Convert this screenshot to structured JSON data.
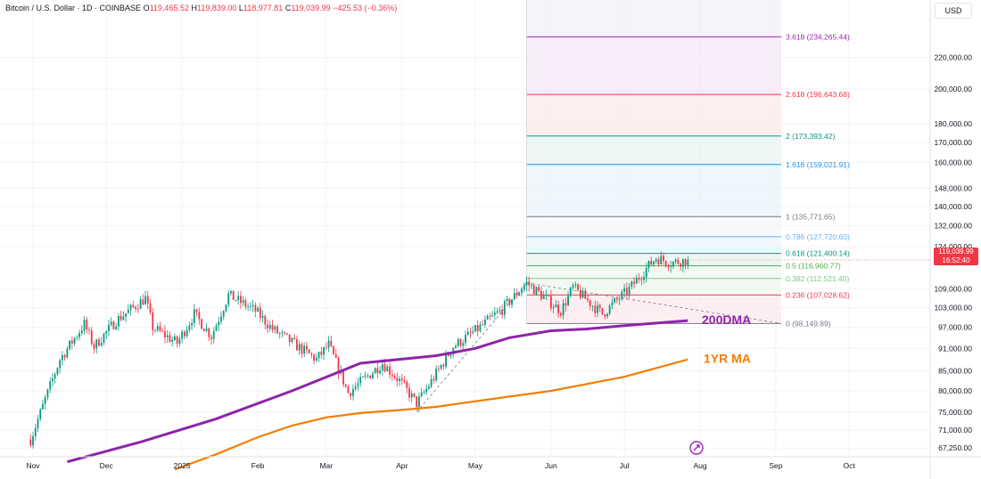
{
  "header": {
    "symbol": "Bitcoin / U.S. Dollar · 1D · COINBASE",
    "open_label": "O",
    "open": "119,465.52",
    "high_label": "H",
    "high": "119,839.00",
    "low_label": "L",
    "low": "118,977.81",
    "close_label": "C",
    "close": "119,039.99",
    "change": "−425.53 (−0.36%)"
  },
  "currency_button": "USD",
  "last_price": {
    "price": "119,039.99",
    "countdown": "16:52:40",
    "color": "#f23645"
  },
  "colors": {
    "up": "#089981",
    "down": "#f23645",
    "dma200": "#8e24aa",
    "ma1yr": "#f57c00",
    "grid": "#f0f3fa"
  },
  "chart_data": {
    "type": "candlestick",
    "y_scale": "log",
    "ylim": [
      65500,
      262000
    ],
    "y_ticks": [
      {
        "value": 220000,
        "label": "220,000.00"
      },
      {
        "value": 200000,
        "label": "200,000.00"
      },
      {
        "value": 180000,
        "label": "180,000.00"
      },
      {
        "value": 170000,
        "label": "170,000.00"
      },
      {
        "value": 160000,
        "label": "160,000.00"
      },
      {
        "value": 148000,
        "label": "148,000.00"
      },
      {
        "value": 140000,
        "label": "140,000.00"
      },
      {
        "value": 132000,
        "label": "132,000.00"
      },
      {
        "value": 124000,
        "label": "124,000.00"
      },
      {
        "value": 109000,
        "label": "109,000.00"
      },
      {
        "value": 103000,
        "label": "103,000.00"
      },
      {
        "value": 97000,
        "label": "97,000.00"
      },
      {
        "value": 91000,
        "label": "91,000.00"
      },
      {
        "value": 85000,
        "label": "85,000.00"
      },
      {
        "value": 80000,
        "label": "80,000.00"
      },
      {
        "value": 75000,
        "label": "75,000.00"
      },
      {
        "value": 71000,
        "label": "71,000.00"
      },
      {
        "value": 67250,
        "label": "67,250.00"
      }
    ],
    "x_ticks": [
      "Nov",
      "Dec",
      "2025",
      "Feb",
      "Mar",
      "Apr",
      "May",
      "Jun",
      "Jul",
      "Aug",
      "Sep",
      "Oct"
    ],
    "fib_levels": [
      {
        "ratio": "0",
        "value": 98149.89,
        "label": "0 (98,149.89)",
        "color": "#787b86"
      },
      {
        "ratio": "0.236",
        "value": 107028.62,
        "label": "0.236 (107,028.62)",
        "color": "#f23645"
      },
      {
        "ratio": "0.382",
        "value": 112521.4,
        "label": "0.382 (112,521.40)",
        "color": "#81c784"
      },
      {
        "ratio": "0.5",
        "value": 116960.77,
        "label": "0.5 (116,960.77)",
        "color": "#4caf50"
      },
      {
        "ratio": "0.618",
        "value": 121400.14,
        "label": "0.618 (121,400.14)",
        "color": "#089981"
      },
      {
        "ratio": "0.786",
        "value": 127720.6,
        "label": "0.786 (127,720.60)",
        "color": "#64b5f6"
      },
      {
        "ratio": "1",
        "value": 135771.65,
        "label": "1 (135,771.65)",
        "color": "#787b86"
      },
      {
        "ratio": "1.618",
        "value": 159021.91,
        "label": "1.618 (159,021.91)",
        "color": "#2196f3"
      },
      {
        "ratio": "2",
        "value": 173393.42,
        "label": "2 (173,393.42)",
        "color": "#089981"
      },
      {
        "ratio": "2.618",
        "value": 196643.68,
        "label": "2.618 (196,643.68)",
        "color": "#f23645"
      },
      {
        "ratio": "3.618",
        "value": 234265.44,
        "label": "3.618 (234,265.44)",
        "color": "#9c27b0"
      }
    ],
    "ma_labels": [
      {
        "text": "200DMA",
        "color": "#8e24aa"
      },
      {
        "text": "1YR MA",
        "color": "#f57c00"
      }
    ],
    "dma200": [
      {
        "date": "2024-11-15",
        "value": 64500
      },
      {
        "date": "2024-12-15",
        "value": 68500
      },
      {
        "date": "2025-01-15",
        "value": 73500
      },
      {
        "date": "2025-02-15",
        "value": 80000
      },
      {
        "date": "2025-03-15",
        "value": 87000
      },
      {
        "date": "2025-04-15",
        "value": 89000
      },
      {
        "date": "2025-05-01",
        "value": 91000
      },
      {
        "date": "2025-05-15",
        "value": 94000
      },
      {
        "date": "2025-06-01",
        "value": 96000
      },
      {
        "date": "2025-06-15",
        "value": 96500
      },
      {
        "date": "2025-07-01",
        "value": 97500
      },
      {
        "date": "2025-07-27",
        "value": 99000
      }
    ],
    "ma1yr": [
      {
        "date": "2024-12-29",
        "value": 63000
      },
      {
        "date": "2025-01-15",
        "value": 66000
      },
      {
        "date": "2025-02-01",
        "value": 69500
      },
      {
        "date": "2025-02-15",
        "value": 72000
      },
      {
        "date": "2025-03-01",
        "value": 73800
      },
      {
        "date": "2025-03-15",
        "value": 74800
      },
      {
        "date": "2025-04-01",
        "value": 75500
      },
      {
        "date": "2025-04-15",
        "value": 76200
      },
      {
        "date": "2025-05-01",
        "value": 77500
      },
      {
        "date": "2025-06-01",
        "value": 80000
      },
      {
        "date": "2025-07-01",
        "value": 83500
      },
      {
        "date": "2025-07-27",
        "value": 88000
      }
    ],
    "candles_anchor": [
      {
        "date": "2024-10-31",
        "close": 69000
      },
      {
        "date": "2024-11-12",
        "close": 88000
      },
      {
        "date": "2024-11-22",
        "close": 98000
      },
      {
        "date": "2024-11-26",
        "close": 91500
      },
      {
        "date": "2024-12-05",
        "close": 99000
      },
      {
        "date": "2024-12-17",
        "close": 106000
      },
      {
        "date": "2024-12-20",
        "close": 97000
      },
      {
        "date": "2024-12-30",
        "close": 92500
      },
      {
        "date": "2025-01-06",
        "close": 101000
      },
      {
        "date": "2025-01-13",
        "close": 94500
      },
      {
        "date": "2025-01-20",
        "close": 107000
      },
      {
        "date": "2025-01-31",
        "close": 102000
      },
      {
        "date": "2025-02-07",
        "close": 96500
      },
      {
        "date": "2025-02-25",
        "close": 88000
      },
      {
        "date": "2025-03-02",
        "close": 92000
      },
      {
        "date": "2025-03-10",
        "close": 79500
      },
      {
        "date": "2025-03-24",
        "close": 87000
      },
      {
        "date": "2025-03-31",
        "close": 82500
      },
      {
        "date": "2025-04-07",
        "close": 77000
      },
      {
        "date": "2025-04-10",
        "close": 79500
      },
      {
        "date": "2025-04-22",
        "close": 91500
      },
      {
        "date": "2025-05-02",
        "close": 96500
      },
      {
        "date": "2025-05-12",
        "close": 102500
      },
      {
        "date": "2025-05-22",
        "close": 111000
      },
      {
        "date": "2025-06-05",
        "close": 102000
      },
      {
        "date": "2025-06-10",
        "close": 109500
      },
      {
        "date": "2025-06-22",
        "close": 101000
      },
      {
        "date": "2025-07-03",
        "close": 109000
      },
      {
        "date": "2025-07-11",
        "close": 117000
      },
      {
        "date": "2025-07-14",
        "close": 119800
      },
      {
        "date": "2025-07-20",
        "close": 118000
      },
      {
        "date": "2025-07-27",
        "close": 119039.99
      }
    ]
  }
}
